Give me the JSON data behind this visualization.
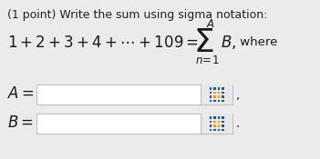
{
  "bg_color": "#ebebeb",
  "title_text": "(1 point) Write the sum using sigma notation:",
  "title_fontsize": 9.0,
  "title_color": "#222222",
  "text_color": "#1a1a1a",
  "box_facecolor": "#ffffff",
  "box_edgecolor": "#c0c0c0",
  "box_inner_facecolor": "#e8e8e8",
  "grid_color_orange": "#e8a020",
  "grid_color_blue": "#1a5aaa",
  "comma_color": "#333333",
  "eq_fontsize": 12.0,
  "label_fontsize": 12.0,
  "sigma_fontsize": 26,
  "sigma_sub_fontsize": 8.5
}
